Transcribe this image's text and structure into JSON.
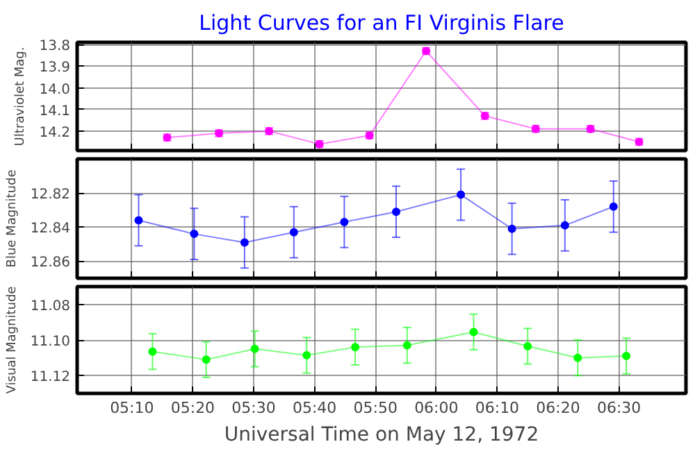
{
  "chart_data": [
    {
      "type": "line",
      "title": "Light Curves for an FI Virginis Flare",
      "ylabel": "Ultraviolet Mag.",
      "x": [
        5.263,
        5.405,
        5.542,
        5.68,
        5.817,
        5.972,
        6.133,
        6.272,
        6.422,
        6.555
      ],
      "series": [
        {
          "color": "#ff00ff",
          "values": [
            14.23,
            14.21,
            14.2,
            14.26,
            14.22,
            13.83,
            14.13,
            14.19,
            14.19,
            14.25
          ],
          "errors": [
            0.015,
            0.015,
            0.015,
            0.015,
            0.015,
            0.015,
            0.015,
            0.015,
            0.015,
            0.015
          ]
        }
      ],
      "xlim": [
        5.0167,
        6.6833
      ],
      "xticks": [
        {
          "value": 5.16667,
          "label": null
        },
        {
          "value": 5.33333,
          "label": null
        },
        {
          "value": 5.5,
          "label": null
        },
        {
          "value": 5.66667,
          "label": null
        },
        {
          "value": 5.83333,
          "label": null
        },
        {
          "value": 6.0,
          "label": null
        },
        {
          "value": 6.16667,
          "label": null
        },
        {
          "value": 6.33333,
          "label": null
        },
        {
          "value": 6.5,
          "label": null
        }
      ],
      "ylim": [
        14.29,
        13.79
      ],
      "yticks": [
        13.8,
        13.9,
        {
          "value": 14.0,
          "label": "14.0"
        },
        14.1,
        14.2
      ],
      "grid": true,
      "marker": "circle",
      "tick_labels": "y"
    },
    {
      "type": "line",
      "ylabel": "Blue Magnitude",
      "x": [
        5.185,
        5.337,
        5.475,
        5.61,
        5.748,
        5.89,
        6.067,
        6.207,
        6.352,
        6.485
      ],
      "series": [
        {
          "color": "#0000ff",
          "values": [
            12.836,
            12.844,
            12.849,
            12.843,
            12.837,
            12.831,
            12.821,
            12.841,
            12.839,
            12.828
          ],
          "errors": [
            0.015,
            0.015,
            0.015,
            0.015,
            0.015,
            0.015,
            0.015,
            0.015,
            0.015,
            0.015
          ]
        }
      ],
      "xlim": [
        5.0167,
        6.6833
      ],
      "xticks": [
        {
          "value": 5.16667,
          "label": null
        },
        {
          "value": 5.33333,
          "label": null
        },
        {
          "value": 5.5,
          "label": null
        },
        {
          "value": 5.66667,
          "label": null
        },
        {
          "value": 5.83333,
          "label": null
        },
        {
          "value": 6.0,
          "label": null
        },
        {
          "value": 6.16667,
          "label": null
        },
        {
          "value": 6.33333,
          "label": null
        },
        {
          "value": 6.5,
          "label": null
        }
      ],
      "ylim": [
        12.87,
        12.8
      ],
      "yticks": [
        12.82,
        12.84,
        12.86
      ],
      "grid": true,
      "marker": "circle",
      "tick_labels": "y"
    },
    {
      "type": "line",
      "ylabel": "Visual Magnitude",
      "xlabel": "Universal Time on May 12, 1972",
      "x": [
        5.223,
        5.37,
        5.503,
        5.645,
        5.778,
        5.92,
        6.102,
        6.25,
        6.387,
        6.52
      ],
      "series": [
        {
          "color": "#00ff00",
          "values": [
            11.1065,
            11.111,
            11.105,
            11.1086,
            11.104,
            11.103,
            11.0955,
            11.1035,
            11.11,
            11.109
          ],
          "errors": [
            0.01,
            0.01,
            0.01,
            0.01,
            0.01,
            0.01,
            0.01,
            0.01,
            0.01,
            0.01
          ]
        }
      ],
      "xlim": [
        5.0167,
        6.6833
      ],
      "xticks": [
        {
          "value": 5.16667,
          "label": "05:10"
        },
        {
          "value": 5.33333,
          "label": "05:20"
        },
        {
          "value": 5.5,
          "label": "05:30"
        },
        {
          "value": 5.66667,
          "label": "05:40"
        },
        {
          "value": 5.83333,
          "label": "05:50"
        },
        {
          "value": 6.0,
          "label": "06:00"
        },
        {
          "value": 6.16667,
          "label": "06:10"
        },
        {
          "value": 6.33333,
          "label": "06:20"
        },
        {
          "value": 6.5,
          "label": "06:30"
        }
      ],
      "ylim": [
        11.13,
        11.07
      ],
      "yticks": [
        11.08,
        {
          "value": 11.1,
          "label": "11.10"
        },
        11.12
      ],
      "grid": true,
      "marker": "circle"
    }
  ]
}
